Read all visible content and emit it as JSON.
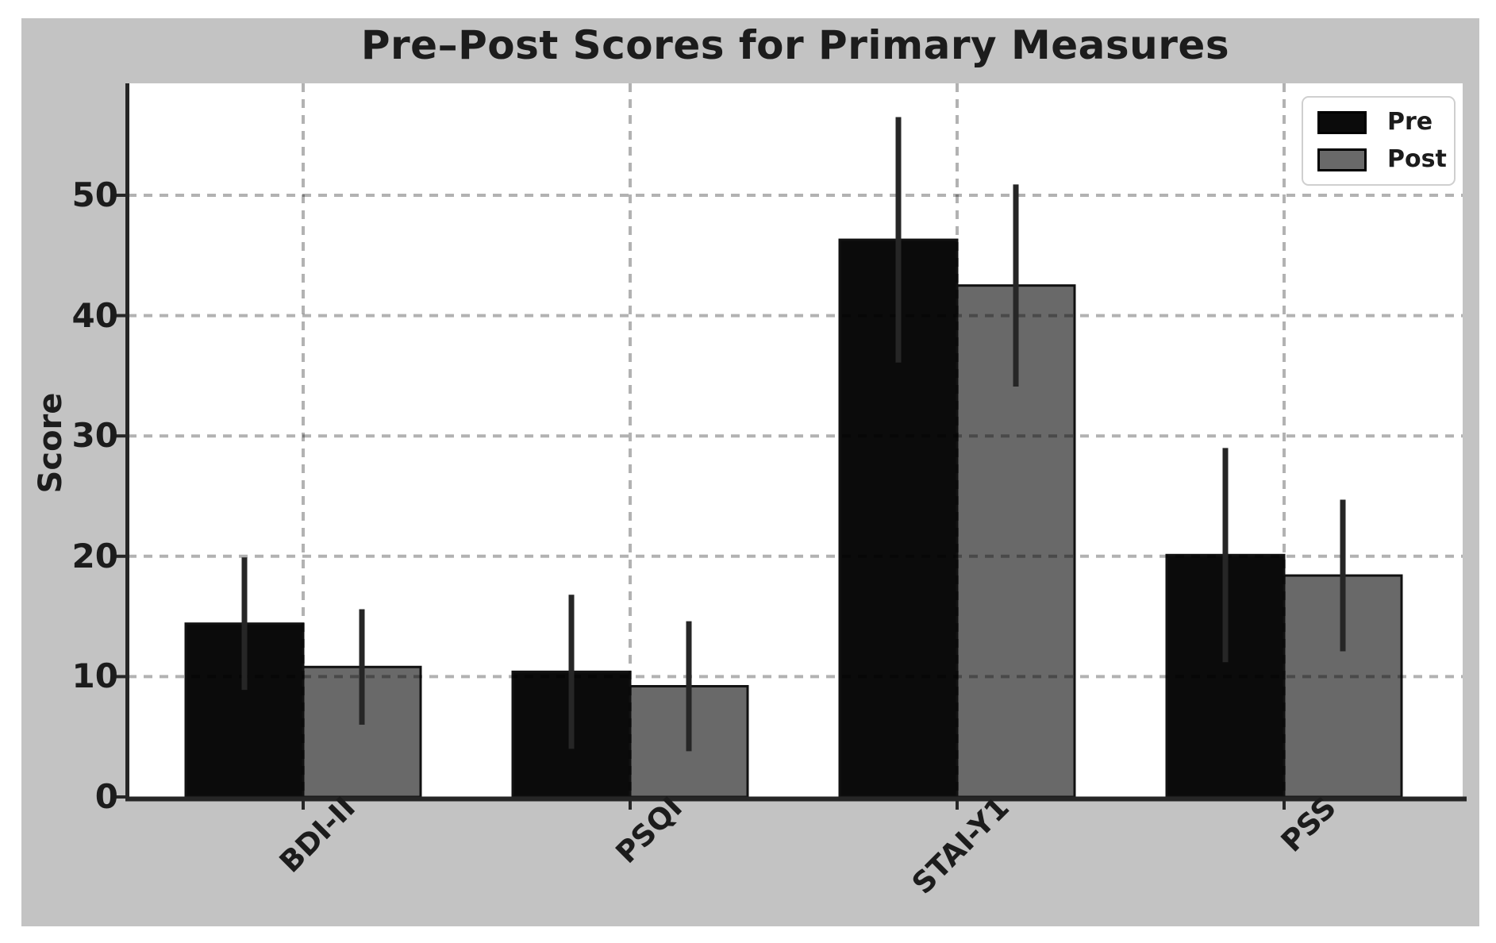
{
  "page": {
    "background": "#ffffff"
  },
  "figure": {
    "background_color": "#c3c3c3",
    "plot_background": "#ffffff"
  },
  "chart_data": {
    "type": "bar",
    "title": "Pre–Post Scores for Primary Measures",
    "xlabel": "",
    "ylabel": "Score",
    "categories": [
      "BDI-II",
      "PSQI",
      "STAI-Y1",
      "PSS"
    ],
    "series": [
      {
        "name": "Pre",
        "color": "#0b0b0b",
        "values": [
          14.4,
          10.4,
          46.3,
          20.1
        ],
        "errors": [
          5.5,
          6.4,
          10.2,
          8.9
        ]
      },
      {
        "name": "Post",
        "color": "#696969",
        "values": [
          10.8,
          9.2,
          42.5,
          18.4
        ],
        "errors": [
          4.8,
          5.4,
          8.4,
          6.3
        ]
      }
    ],
    "yticks": [
      0,
      10,
      20,
      30,
      40,
      50
    ],
    "ylim": [
      0,
      59.3
    ],
    "grid": true,
    "grid_style": "dashed",
    "grid_over_bars": true,
    "legend_position": "upper right",
    "bar_edge_color": "#111111",
    "error_bar_color": "#262626",
    "axis_color": "#262626"
  }
}
